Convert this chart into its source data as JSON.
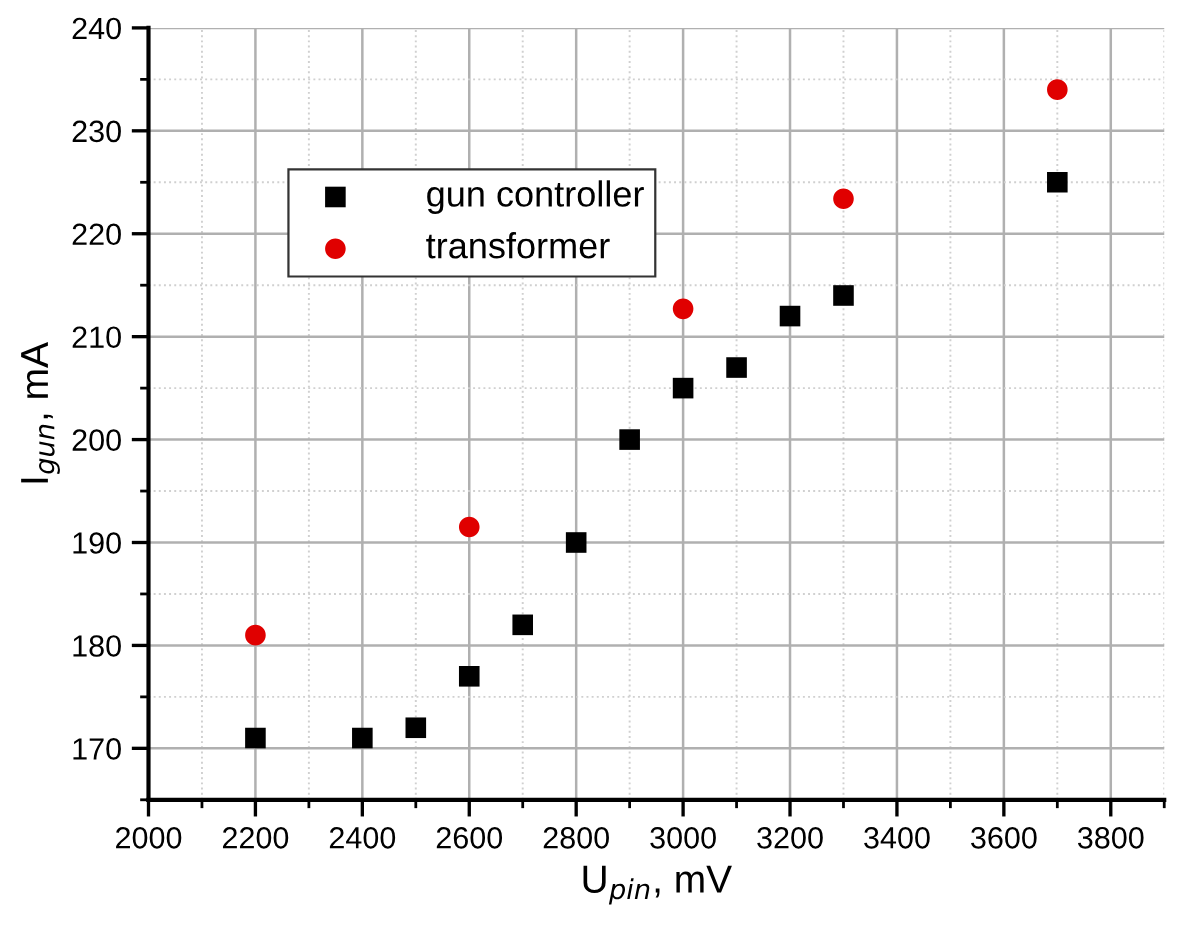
{
  "chart_data": {
    "type": "scatter",
    "xlabel": "U$_{pin}$, mV",
    "ylabel": "I$_{gun}$, mA",
    "xlim": [
      2000,
      3900
    ],
    "xticks": [
      2000,
      2200,
      2400,
      2600,
      2800,
      3000,
      3200,
      3400,
      3600,
      3800
    ],
    "ylim": [
      165,
      240
    ],
    "yticks": [
      170,
      180,
      190,
      200,
      210,
      220,
      230,
      240
    ],
    "grid": true,
    "legend": "top left",
    "series": [
      {
        "name": "gun controller",
        "color": "#000000",
        "marker": "square",
        "x": [
          2200,
          2400,
          2500,
          2600,
          2700,
          2800,
          2900,
          3000,
          3100,
          3200,
          3300,
          3700
        ],
        "values": [
          171,
          171,
          172,
          177,
          182,
          190,
          200,
          205,
          207,
          212,
          214,
          225
        ]
      },
      {
        "name": "transformer",
        "color": "#e00000",
        "marker": "circle",
        "x": [
          2200,
          2600,
          3000,
          3300,
          3700
        ],
        "values": [
          181,
          191.5,
          212.7,
          223.4,
          234
        ]
      }
    ]
  }
}
